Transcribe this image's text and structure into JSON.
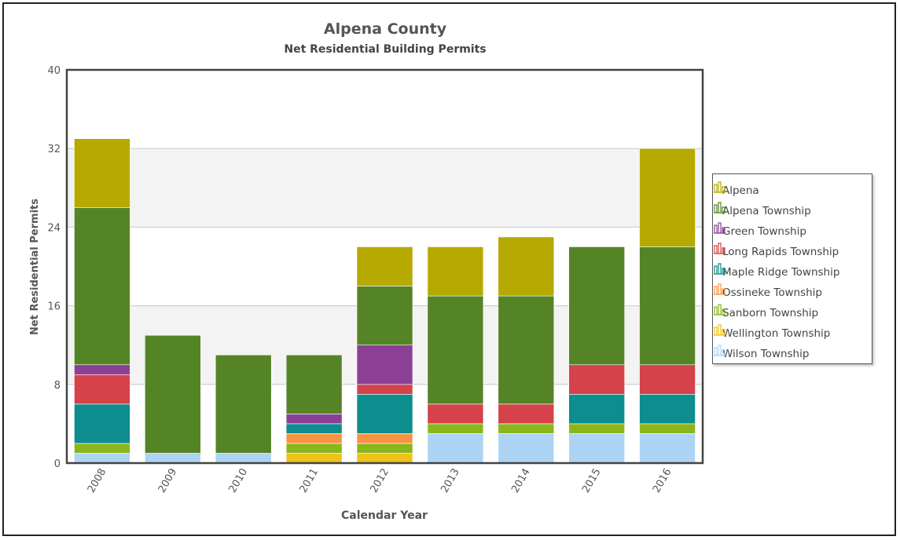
{
  "chart_data": {
    "type": "bar",
    "stacked": true,
    "title": "Alpena County",
    "subtitle": "Net Residential Building Permits",
    "xlabel": "Calendar Year",
    "ylabel": "Net Residential Permits",
    "ylim": [
      0,
      40
    ],
    "yticks": [
      0,
      8,
      16,
      24,
      32,
      40
    ],
    "categories": [
      "2008",
      "2009",
      "2010",
      "2011",
      "2012",
      "2013",
      "2014",
      "2015",
      "2016"
    ],
    "series": [
      {
        "name": "Wilson Township",
        "color": "#aed4f5",
        "values": [
          1,
          1,
          1,
          0,
          0,
          3,
          3,
          3,
          3
        ]
      },
      {
        "name": "Wellington Township",
        "color": "#eec21a",
        "values": [
          0,
          0,
          0,
          1,
          1,
          0,
          0,
          0,
          0
        ]
      },
      {
        "name": "Sanborn Township",
        "color": "#8ab61c",
        "values": [
          1,
          0,
          0,
          1,
          1,
          1,
          1,
          1,
          1
        ]
      },
      {
        "name": "Ossineke Township",
        "color": "#f79444",
        "values": [
          0,
          0,
          0,
          1,
          1,
          0,
          0,
          0,
          0
        ]
      },
      {
        "name": "Maple Ridge Township",
        "color": "#0d8d8d",
        "values": [
          4,
          0,
          0,
          1,
          4,
          0,
          0,
          3,
          3
        ]
      },
      {
        "name": "Long Rapids Township",
        "color": "#d54249",
        "values": [
          3,
          0,
          0,
          0,
          1,
          2,
          2,
          3,
          3
        ]
      },
      {
        "name": "Green Township",
        "color": "#8b3f95",
        "values": [
          1,
          0,
          0,
          1,
          4,
          0,
          0,
          0,
          0
        ]
      },
      {
        "name": "Alpena Township",
        "color": "#558427",
        "values": [
          16,
          12,
          10,
          6,
          6,
          11,
          11,
          12,
          12
        ]
      },
      {
        "name": "Alpena",
        "color": "#b6a900",
        "values": [
          7,
          0,
          0,
          0,
          4,
          5,
          6,
          0,
          10
        ]
      }
    ],
    "legend": {
      "position": "right",
      "order": [
        "Alpena",
        "Alpena Township",
        "Green Township",
        "Long Rapids Township",
        "Maple Ridge Township",
        "Ossineke Township",
        "Sanborn Township",
        "Wellington Township",
        "Wilson Township"
      ]
    },
    "grid": true
  }
}
